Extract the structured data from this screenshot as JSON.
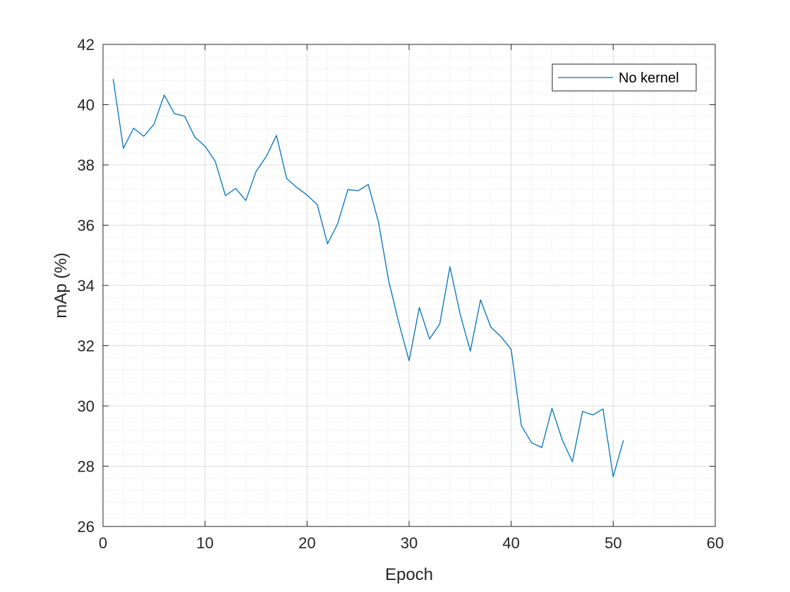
{
  "chart_data": {
    "type": "line",
    "title": "",
    "xlabel": "Epoch",
    "ylabel": "mAp (%)",
    "xlim": [
      0,
      60
    ],
    "ylim": [
      26,
      42
    ],
    "xticks": [
      0,
      10,
      20,
      30,
      40,
      50,
      60
    ],
    "yticks": [
      26,
      28,
      30,
      32,
      34,
      36,
      38,
      40,
      42
    ],
    "xtick_labels": [
      "0",
      "10",
      "20",
      "30",
      "40",
      "50",
      "60"
    ],
    "ytick_labels": [
      "26",
      "28",
      "30",
      "32",
      "34",
      "36",
      "38",
      "40",
      "42"
    ],
    "grid": true,
    "minor_grid": true,
    "legend_position": "top-right",
    "series": [
      {
        "name": "No kernel",
        "color": "#0072BD",
        "x": [
          1,
          2,
          3,
          4,
          5,
          6,
          7,
          8,
          9,
          10,
          11,
          12,
          13,
          14,
          15,
          16,
          17,
          18,
          19,
          20,
          21,
          22,
          23,
          24,
          25,
          26,
          27,
          28,
          29,
          30,
          31,
          32,
          33,
          34,
          35,
          36,
          37,
          38,
          39,
          40,
          41,
          42,
          43,
          44,
          45,
          46,
          47,
          48,
          49,
          50,
          51
        ],
        "y": [
          40.85,
          38.55,
          39.22,
          38.95,
          39.35,
          40.32,
          39.7,
          39.62,
          38.92,
          38.62,
          38.12,
          36.98,
          37.22,
          36.82,
          37.78,
          38.28,
          38.98,
          37.55,
          37.25,
          37.0,
          36.68,
          35.38,
          36.05,
          37.18,
          37.14,
          37.35,
          36.1,
          34.15,
          32.75,
          31.5,
          33.27,
          32.22,
          32.72,
          34.62,
          33.05,
          31.82,
          33.52,
          32.62,
          32.3,
          31.88,
          29.35,
          28.78,
          28.62,
          29.92,
          28.88,
          28.15,
          29.82,
          29.7,
          29.9,
          27.65,
          28.86
        ]
      }
    ]
  }
}
